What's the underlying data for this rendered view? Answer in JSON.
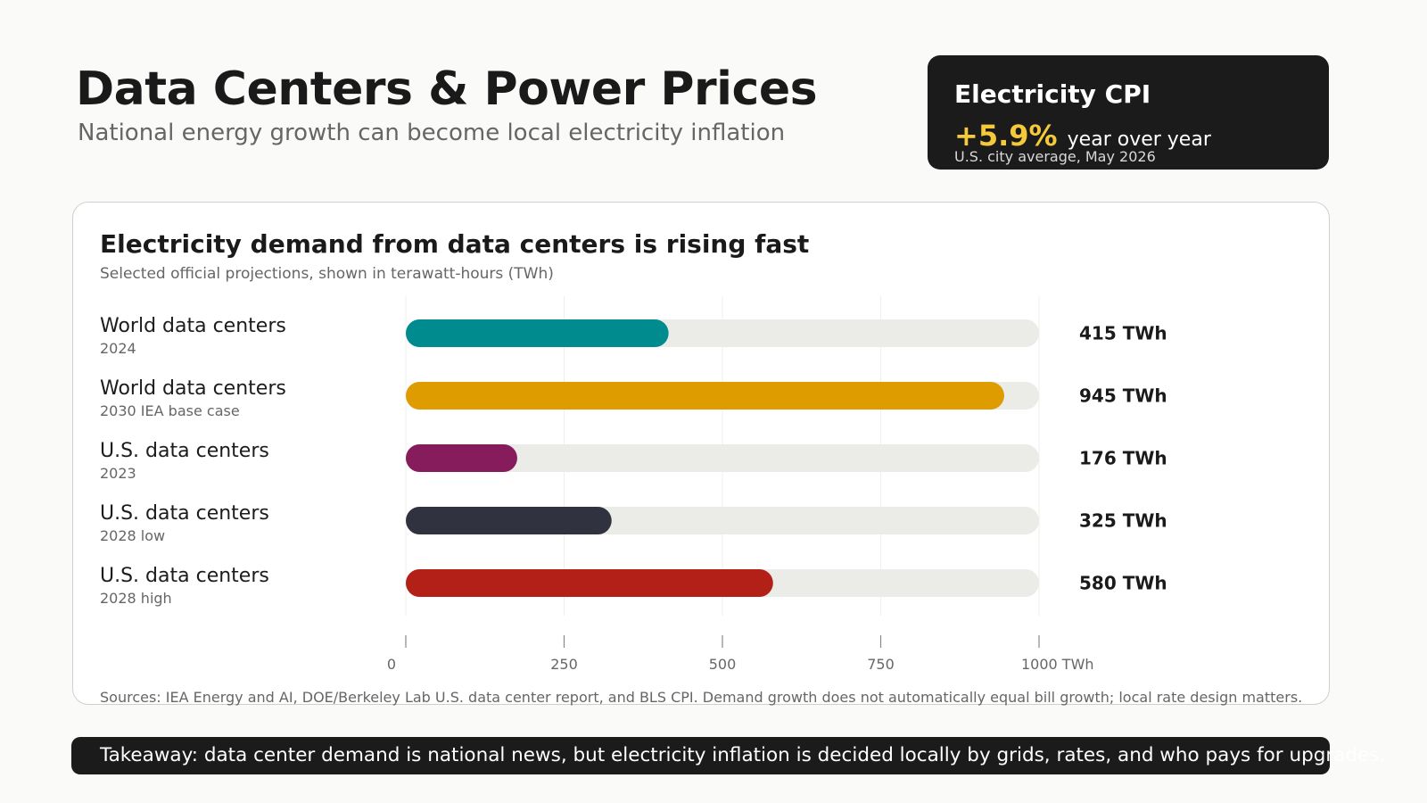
{
  "header": {
    "title": "Data Centers & Power Prices",
    "subtitle": "National energy growth can become local electricity inflation"
  },
  "cpi_card": {
    "title": "Electricity CPI",
    "value": "+5.9%",
    "value_unit": "year over year",
    "note": "U.S. city average, May 2026",
    "accent_color": "#f5c93a"
  },
  "chart_data": {
    "type": "bar",
    "orientation": "horizontal",
    "title": "Electricity demand from data centers is rising fast",
    "subtitle": "Selected official projections, shown in terawatt-hours (TWh)",
    "unit": "TWh",
    "xlim": [
      0,
      1000
    ],
    "ticks": [
      {
        "value": 0,
        "label": "0"
      },
      {
        "value": 250,
        "label": "250"
      },
      {
        "value": 500,
        "label": "500"
      },
      {
        "value": 750,
        "label": "750"
      },
      {
        "value": 1000,
        "label": "1000 TWh"
      }
    ],
    "grid": true,
    "categories": [
      {
        "label": "World data centers",
        "sublabel": "2024",
        "value": 415,
        "value_label": "415 TWh",
        "color": "#008b8f"
      },
      {
        "label": "World data centers",
        "sublabel": "2030 IEA base case",
        "value": 945,
        "value_label": "945 TWh",
        "color": "#de9c00"
      },
      {
        "label": "U.S. data centers",
        "sublabel": "2023",
        "value": 176,
        "value_label": "176 TWh",
        "color": "#861c5c"
      },
      {
        "label": "U.S. data centers",
        "sublabel": "2028 low",
        "value": 325,
        "value_label": "325 TWh",
        "color": "#30333f"
      },
      {
        "label": "U.S. data centers",
        "sublabel": "2028 high",
        "value": 580,
        "value_label": "580 TWh",
        "color": "#b32018"
      }
    ],
    "track_color": "#ebebe7"
  },
  "sources": "Sources: IEA Energy and AI, DOE/Berkeley Lab U.S. data center report, and BLS CPI. Demand growth does not automatically equal bill growth; local rate design matters.",
  "takeaway": "Takeaway: data center demand is national news, but electricity inflation is decided locally by grids, rates, and who pays for upgrades."
}
